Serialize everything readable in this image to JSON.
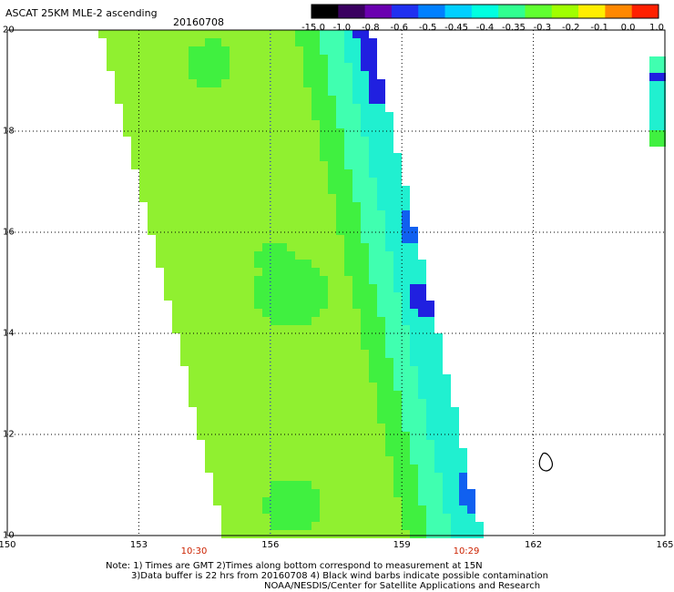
{
  "header": {
    "title": "ASCAT 25KM MLE-2 ascending",
    "date": "20160708"
  },
  "colorbar": {
    "labels": [
      "-15.0",
      "-1.0",
      "-0.8",
      "-0.6",
      "-0.5",
      "-0.45",
      "-0.4",
      "-0.35",
      "-0.3",
      "-0.2",
      "-0.1",
      "0.0",
      "1.0"
    ],
    "colors": [
      "#000000",
      "#3a0060",
      "#6a00b0",
      "#2030f0",
      "#0080ff",
      "#00d0ff",
      "#00ffe0",
      "#30ff90",
      "#60ff30",
      "#a0ff00",
      "#ffee00",
      "#ff8800",
      "#ff2000"
    ]
  },
  "map": {
    "lon_range": [
      150,
      165
    ],
    "lat_range": [
      10,
      20
    ],
    "x_ticks": [
      "150",
      "153",
      "156",
      "159",
      "162",
      "165"
    ],
    "y_ticks": [
      "20",
      "18",
      "16",
      "14",
      "12",
      "10"
    ],
    "swath_colors": {
      "base": "#90f030",
      "green": "#40f040",
      "cyan": "#20f0d0",
      "aqua": "#40ffb0",
      "blue": "#1060f0",
      "deep_blue": "#2020e0",
      "purple": "#6010c0"
    }
  },
  "times": {
    "left": "10:30",
    "right": "10:29"
  },
  "footer": {
    "line1": "Note: 1) Times are GMT 2)Times along bottom correspond to measurement at 15N",
    "line2": "3)Data buffer is 22 hrs from 20160708 4) Black wind barbs indicate possible contamination",
    "line3": "NOAA/NESDIS/Center for Satellite Applications and Research"
  }
}
